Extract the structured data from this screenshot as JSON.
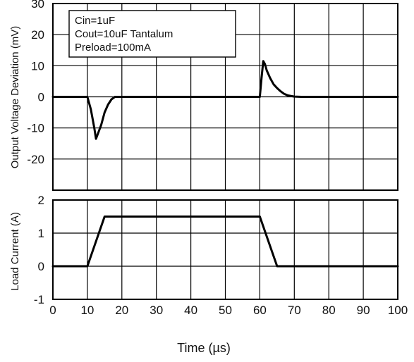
{
  "chart_data": {
    "type": "line",
    "x_axis": {
      "label": "Time (µs)",
      "lim": [
        0,
        100
      ],
      "ticks": [
        0,
        10,
        20,
        30,
        40,
        50,
        60,
        70,
        80,
        90,
        100
      ],
      "tick_labels": [
        "0",
        "10",
        "20",
        "30",
        "40",
        "50",
        "60",
        "70",
        "80",
        "90",
        "100"
      ]
    },
    "grid": true,
    "panels": [
      {
        "name": "output-voltage-deviation",
        "ylabel": "Output Voltage Deviation (mV)",
        "ylim": [
          -30,
          30
        ],
        "y_ticks": [
          -20,
          -10,
          0,
          10,
          20,
          30
        ],
        "y_tick_labels": [
          "-20",
          "-10",
          "0",
          "10",
          "20",
          "30"
        ],
        "annotation": [
          "Cin=1uF",
          "Cout=10uF  Tantalum",
          "Preload=100mA"
        ],
        "series": [
          {
            "x": [
              0,
              10,
              11,
              12,
              12.5,
              13,
              14,
              15,
              16,
              17,
              18,
              60,
              60.5,
              61,
              61.5,
              62,
              63,
              64,
              65,
              66,
              67,
              68,
              70,
              72,
              100
            ],
            "y": [
              0,
              0,
              -4,
              -10,
              -13.5,
              -12,
              -9,
              -5,
              -2.5,
              -0.8,
              0,
              0,
              6,
              11.5,
              10.5,
              8.5,
              6,
              4,
              2.8,
              1.8,
              1,
              0.5,
              0.1,
              0,
              0
            ]
          }
        ]
      },
      {
        "name": "load-current",
        "ylabel": "Load Current (A)",
        "ylim": [
          -1,
          2
        ],
        "y_ticks": [
          -1,
          0,
          1,
          2
        ],
        "y_tick_labels": [
          "-1",
          "0",
          "1",
          "2"
        ],
        "series": [
          {
            "x": [
              0,
              10,
              15,
              60,
              65,
              100
            ],
            "y": [
              0,
              0,
              1.5,
              1.5,
              0,
              0
            ]
          }
        ]
      }
    ]
  }
}
